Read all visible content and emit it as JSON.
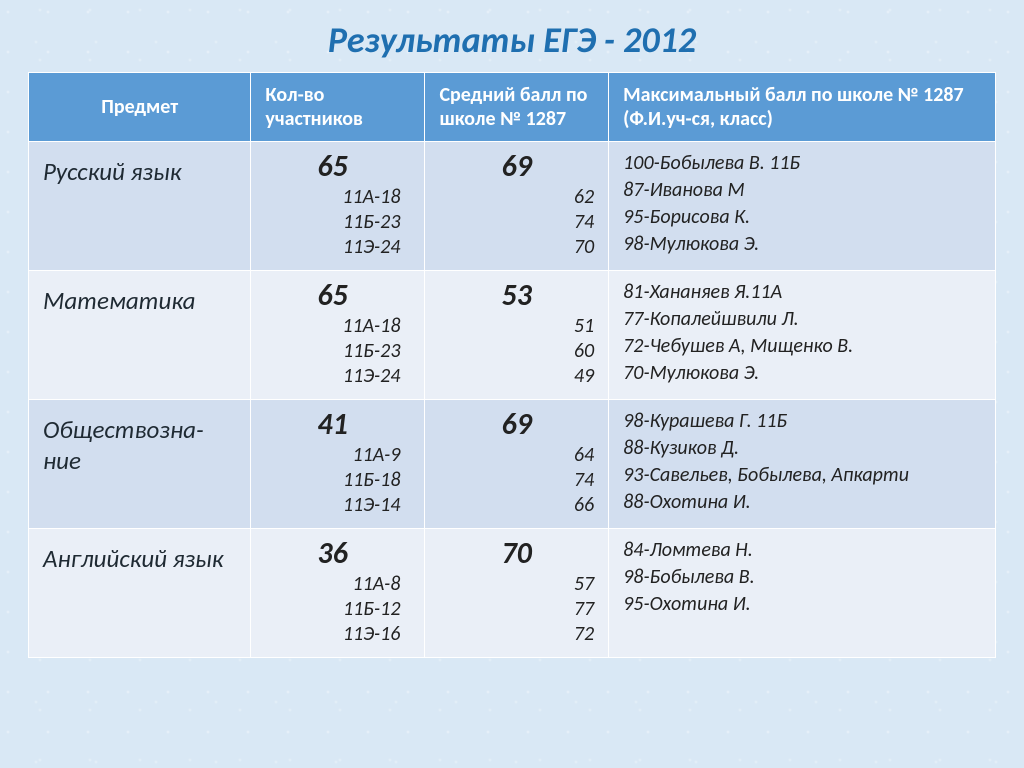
{
  "title": "Результаты ЕГЭ - 2012",
  "columns": {
    "subject": "Предмет",
    "count": "Кол-во участников",
    "avg": "Средний балл по школе № 1287",
    "max": "Максимальный балл по школе № 1287 (Ф.И.уч-ся, класс)"
  },
  "styling": {
    "header_bg": "#5b9bd5",
    "header_fg": "#ffffff",
    "row_alt_bg": "#d2deef",
    "row_plain_bg": "#eaeff7",
    "title_color": "#1f6fb0",
    "page_bg": "#d9e8f5",
    "title_fontsize": 36,
    "header_fontsize": 20,
    "subject_fontsize": 25,
    "agg_fontsize": 30,
    "detail_fontsize": 20,
    "col_widths_pct": [
      23,
      18,
      19,
      40
    ]
  },
  "rows": [
    {
      "subject": "Русский язык",
      "count_total": "65",
      "count_breakdown": [
        "11А-18",
        "11Б-23",
        "11Э-24"
      ],
      "avg_total": "69",
      "avg_breakdown": [
        "62",
        "74",
        "70"
      ],
      "max_lines": [
        "100-Бобылева В. 11Б",
        "87-Иванова М",
        "95-Борисова К.",
        "98-Мулюкова Э."
      ]
    },
    {
      "subject": "Математика",
      "count_total": "65",
      "count_breakdown": [
        "11А-18",
        "11Б-23",
        "11Э-24"
      ],
      "avg_total": "53",
      "avg_breakdown": [
        "51",
        "60",
        "49"
      ],
      "max_lines": [
        "81-Хананяев Я.11А",
        "77-Копалейшвили Л.",
        "72-Чебушев А, Мищенко В.",
        "70-Мулюкова Э."
      ]
    },
    {
      "subject": "Обществозна-ние",
      "count_total": "41",
      "count_breakdown": [
        "11А-9",
        "11Б-18",
        "11Э-14"
      ],
      "avg_total": "69",
      "avg_breakdown": [
        "64",
        "74",
        "66"
      ],
      "max_lines": [
        "98-Курашева Г. 11Б",
        "88-Кузиков Д.",
        "93-Савельев, Бобылева, Апкарти",
        "88-Охотина И."
      ]
    },
    {
      "subject": "Английский язык",
      "count_total": "36",
      "count_breakdown": [
        "11А-8",
        "11Б-12",
        "11Э-16"
      ],
      "avg_total": "70",
      "avg_breakdown": [
        "57",
        "77",
        "72"
      ],
      "max_lines": [
        "84-Ломтева Н.",
        "98-Бобылева В.",
        "95-Охотина И."
      ]
    }
  ]
}
